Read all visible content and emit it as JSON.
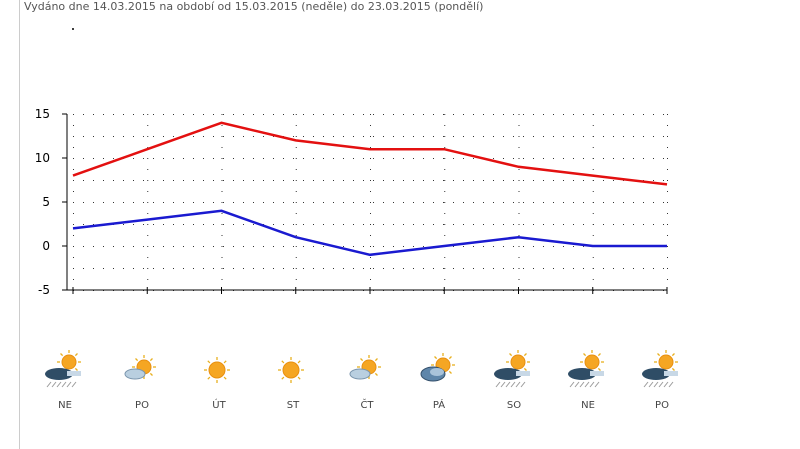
{
  "header": {
    "text": "Vydáno dne 14.03.2015 na období od 15.03.2015 (neděle) do 23.03.2015 (pondělí)"
  },
  "chart_data": {
    "type": "line",
    "title": "",
    "xlabel": "",
    "ylabel": "",
    "ylim": [
      -5,
      15
    ],
    "yticks": [
      15,
      10,
      5,
      0,
      -5
    ],
    "grid": "dotted",
    "categories": [
      "NE",
      "PO",
      "ÚT",
      "ST",
      "ČT",
      "PÁ",
      "SO",
      "NE",
      "PO"
    ],
    "series": [
      {
        "color": "#e31010",
        "values": [
          8,
          11,
          14,
          12,
          11,
          11,
          9,
          8,
          7
        ]
      },
      {
        "color": "#1a1ad0",
        "values": [
          2,
          3,
          4,
          1,
          -1,
          0,
          1,
          0,
          0
        ]
      }
    ]
  },
  "days": [
    {
      "label": "NE",
      "icon": "rain-sun-icon"
    },
    {
      "label": "PO",
      "icon": "partly-cloudy-icon"
    },
    {
      "label": "ÚT",
      "icon": "sunny-icon"
    },
    {
      "label": "ST",
      "icon": "sunny-icon"
    },
    {
      "label": "ČT",
      "icon": "partly-cloudy-icon"
    },
    {
      "label": "PÁ",
      "icon": "cloudy-sun-icon"
    },
    {
      "label": "SO",
      "icon": "rain-sun-icon"
    },
    {
      "label": "NE",
      "icon": "rain-sun-icon"
    },
    {
      "label": "PO",
      "icon": "rain-sun-icon"
    }
  ]
}
